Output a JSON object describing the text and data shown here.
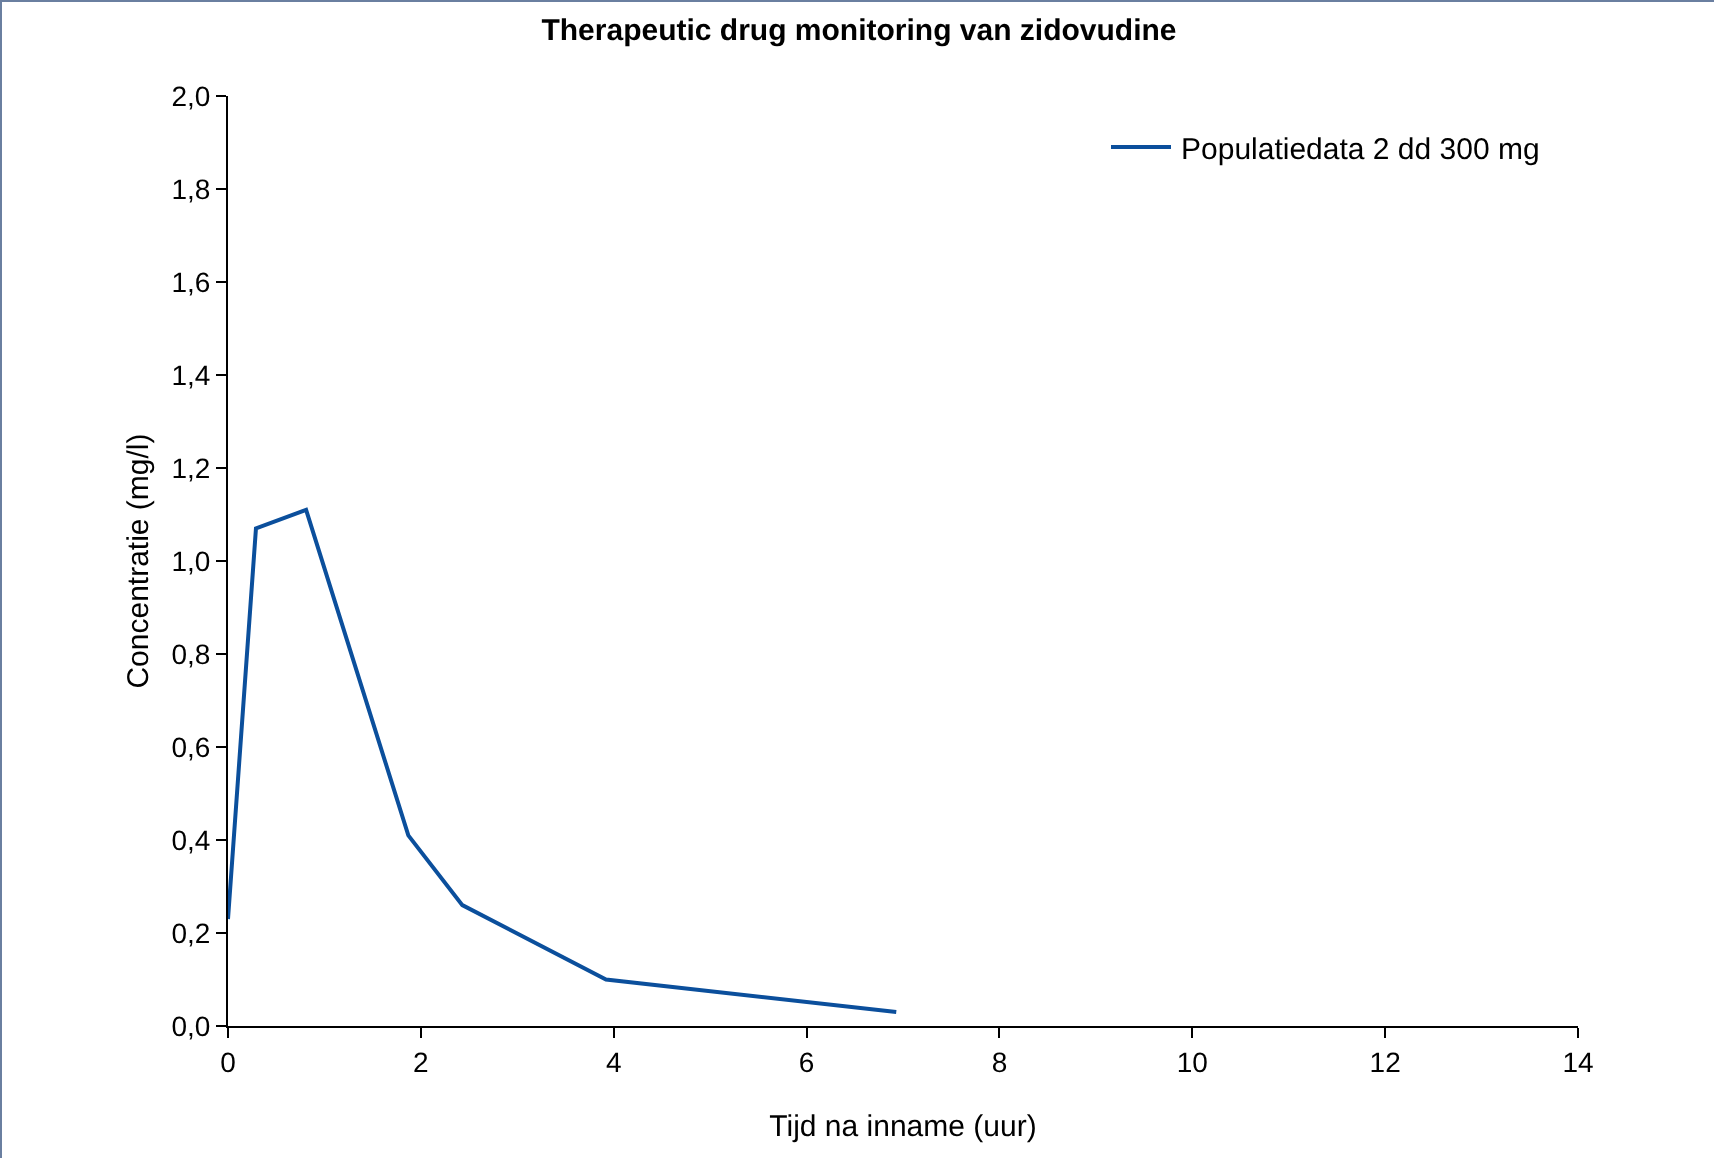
{
  "chart_data": {
    "type": "line",
    "title": "Therapeutic drug monitoring van zidovudine",
    "xlabel": "Tijd na inname (uur)",
    "ylabel": "Concentratie (mg/l)",
    "x": [
      0,
      0.29,
      0.81,
      1.87,
      2.43,
      3.92,
      6.93
    ],
    "series": [
      {
        "name": "Populatiedata 2 dd 300 mg",
        "color": "#0b4f9c",
        "values": [
          0.23,
          1.07,
          1.11,
          0.41,
          0.26,
          0.1,
          0.03
        ]
      }
    ],
    "xlim": [
      0,
      14
    ],
    "xticks": [
      0,
      2,
      4,
      6,
      8,
      10,
      12,
      14
    ],
    "ylim": [
      0,
      2
    ],
    "yticks": [
      {
        "value": 0,
        "label": "0,0"
      },
      {
        "value": 0.2,
        "label": "0,2"
      },
      {
        "value": 0.4,
        "label": "0,4"
      },
      {
        "value": 0.6,
        "label": "0,6"
      },
      {
        "value": 0.8,
        "label": "0,8"
      },
      {
        "value": 1,
        "label": "1,0"
      },
      {
        "value": 1.2,
        "label": "1,2"
      },
      {
        "value": 1.4,
        "label": "1,4"
      },
      {
        "value": 1.6,
        "label": "1,6"
      },
      {
        "value": 1.8,
        "label": "1,8"
      },
      {
        "value": 2,
        "label": "2,0"
      }
    ],
    "grid": false,
    "legend": "top right",
    "marker": "none",
    "line_style": "solid"
  }
}
